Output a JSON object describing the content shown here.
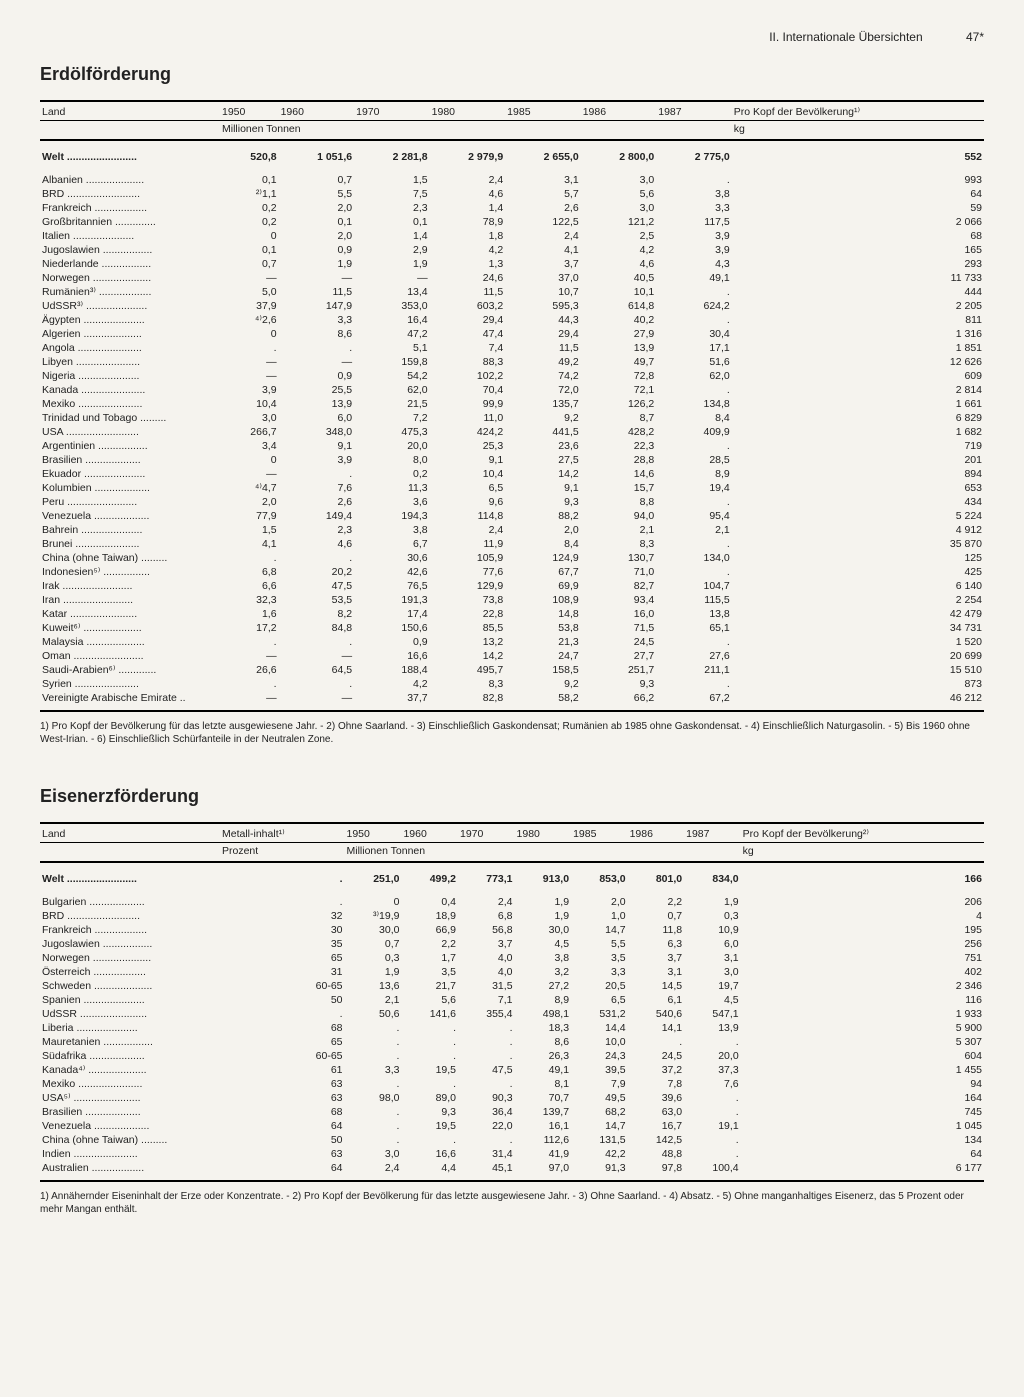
{
  "header": {
    "section": "II. Internationale Übersichten",
    "page": "47*"
  },
  "table1": {
    "title": "Erdölförderung",
    "columns": [
      "Land",
      "1950",
      "1960",
      "1970",
      "1980",
      "1985",
      "1986",
      "1987",
      "Pro Kopf der Bevölkerung¹⁾"
    ],
    "unit_left": "Millionen Tonnen",
    "unit_right": "kg",
    "world_label": "Welt",
    "world": [
      "520,8",
      "1 051,6",
      "2 281,8",
      "2 979,9",
      "2 655,0",
      "2 800,0",
      "2 775,0",
      "552"
    ],
    "rows": [
      [
        "Albanien",
        "0,1",
        "0,7",
        "1,5",
        "2,4",
        "3,1",
        "3,0",
        ".",
        "993"
      ],
      [
        "BRD",
        "²⁾1,1",
        "5,5",
        "7,5",
        "4,6",
        "5,7",
        "5,6",
        "3,8",
        "64"
      ],
      [
        "Frankreich",
        "0,2",
        "2,0",
        "2,3",
        "1,4",
        "2,6",
        "3,0",
        "3,3",
        "59"
      ],
      [
        "Großbritannien",
        "0,2",
        "0,1",
        "0,1",
        "78,9",
        "122,5",
        "121,2",
        "117,5",
        "2 066"
      ],
      [
        "Italien",
        "0",
        "2,0",
        "1,4",
        "1,8",
        "2,4",
        "2,5",
        "3,9",
        "68"
      ],
      [
        "Jugoslawien",
        "0,1",
        "0,9",
        "2,9",
        "4,2",
        "4,1",
        "4,2",
        "3,9",
        "165"
      ],
      [
        "Niederlande",
        "0,7",
        "1,9",
        "1,9",
        "1,3",
        "3,7",
        "4,6",
        "4,3",
        "293"
      ],
      [
        "Norwegen",
        "—",
        "—",
        "—",
        "24,6",
        "37,0",
        "40,5",
        "49,1",
        "11 733"
      ],
      [
        "Rumänien³⁾",
        "5,0",
        "11,5",
        "13,4",
        "11,5",
        "10,7",
        "10,1",
        ".",
        "444"
      ],
      [
        "UdSSR³⁾",
        "37,9",
        "147,9",
        "353,0",
        "603,2",
        "595,3",
        "614,8",
        "624,2",
        "2 205"
      ],
      [
        "Ägypten",
        "⁴⁾2,6",
        "3,3",
        "16,4",
        "29,4",
        "44,3",
        "40,2",
        ".",
        "811"
      ],
      [
        "Algerien",
        "0",
        "8,6",
        "47,2",
        "47,4",
        "29,4",
        "27,9",
        "30,4",
        "1 316"
      ],
      [
        "Angola",
        ".",
        ".",
        "5,1",
        "7,4",
        "11,5",
        "13,9",
        "17,1",
        "1 851"
      ],
      [
        "Libyen",
        "—",
        "—",
        "159,8",
        "88,3",
        "49,2",
        "49,7",
        "51,6",
        "12 626"
      ],
      [
        "Nigeria",
        "—",
        "0,9",
        "54,2",
        "102,2",
        "74,2",
        "72,8",
        "62,0",
        "609"
      ],
      [
        "Kanada",
        "3,9",
        "25,5",
        "62,0",
        "70,4",
        "72,0",
        "72,1",
        ".",
        "2 814"
      ],
      [
        "Mexiko",
        "10,4",
        "13,9",
        "21,5",
        "99,9",
        "135,7",
        "126,2",
        "134,8",
        "1 661"
      ],
      [
        "Trinidad und Tobago",
        "3,0",
        "6,0",
        "7,2",
        "11,0",
        "9,2",
        "8,7",
        "8,4",
        "6 829"
      ],
      [
        "USA",
        "266,7",
        "348,0",
        "475,3",
        "424,2",
        "441,5",
        "428,2",
        "409,9",
        "1 682"
      ],
      [
        "Argentinien",
        "3,4",
        "9,1",
        "20,0",
        "25,3",
        "23,6",
        "22,3",
        ".",
        "719"
      ],
      [
        "Brasilien",
        "0",
        "3,9",
        "8,0",
        "9,1",
        "27,5",
        "28,8",
        "28,5",
        "201"
      ],
      [
        "Ekuador",
        "—",
        ".",
        "0,2",
        "10,4",
        "14,2",
        "14,6",
        "8,9",
        "894"
      ],
      [
        "Kolumbien",
        "⁴⁾4,7",
        "7,6",
        "11,3",
        "6,5",
        "9,1",
        "15,7",
        "19,4",
        "653"
      ],
      [
        "Peru",
        "2,0",
        "2,6",
        "3,6",
        "9,6",
        "9,3",
        "8,8",
        ".",
        "434"
      ],
      [
        "Venezuela",
        "77,9",
        "149,4",
        "194,3",
        "114,8",
        "88,2",
        "94,0",
        "95,4",
        "5 224"
      ],
      [
        "Bahrein",
        "1,5",
        "2,3",
        "3,8",
        "2,4",
        "2,0",
        "2,1",
        "2,1",
        "4 912"
      ],
      [
        "Brunei",
        "4,1",
        "4,6",
        "6,7",
        "11,9",
        "8,4",
        "8,3",
        ".",
        "35 870"
      ],
      [
        "China (ohne Taiwan)",
        ".",
        ".",
        "30,6",
        "105,9",
        "124,9",
        "130,7",
        "134,0",
        "125"
      ],
      [
        "Indonesien⁵⁾",
        "6,8",
        "20,2",
        "42,6",
        "77,6",
        "67,7",
        "71,0",
        ".",
        "425"
      ],
      [
        "Irak",
        "6,6",
        "47,5",
        "76,5",
        "129,9",
        "69,9",
        "82,7",
        "104,7",
        "6 140"
      ],
      [
        "Iran",
        "32,3",
        "53,5",
        "191,3",
        "73,8",
        "108,9",
        "93,4",
        "115,5",
        "2 254"
      ],
      [
        "Katar",
        "1,6",
        "8,2",
        "17,4",
        "22,8",
        "14,8",
        "16,0",
        "13,8",
        "42 479"
      ],
      [
        "Kuweit⁶⁾",
        "17,2",
        "84,8",
        "150,6",
        "85,5",
        "53,8",
        "71,5",
        "65,1",
        "34 731"
      ],
      [
        "Malaysia",
        ".",
        ".",
        "0,9",
        "13,2",
        "21,3",
        "24,5",
        ".",
        "1 520"
      ],
      [
        "Oman",
        "—",
        "—",
        "16,6",
        "14,2",
        "24,7",
        "27,7",
        "27,6",
        "20 699"
      ],
      [
        "Saudi-Arabien⁶⁾",
        "26,6",
        "64,5",
        "188,4",
        "495,7",
        "158,5",
        "251,7",
        "211,1",
        "15 510"
      ],
      [
        "Syrien",
        ".",
        ".",
        "4,2",
        "8,3",
        "9,2",
        "9,3",
        ".",
        "873"
      ],
      [
        "Vereinigte Arabische Emirate",
        "—",
        "—",
        "37,7",
        "82,8",
        "58,2",
        "66,2",
        "67,2",
        "46 212"
      ]
    ],
    "footnotes": "1) Pro Kopf der Bevölkerung für das letzte ausgewiesene Jahr. - 2) Ohne Saarland. - 3) Einschließlich Gaskondensat; Rumänien ab 1985 ohne Gaskondensat. - 4) Einschließlich Naturgasolin. - 5) Bis 1960 ohne West-Irian. - 6) Einschließlich Schürfanteile in der Neutralen Zone."
  },
  "table2": {
    "title": "Eisenerzförderung",
    "columns": [
      "Land",
      "Metall-inhalt¹⁾",
      "1950",
      "1960",
      "1970",
      "1980",
      "1985",
      "1986",
      "1987",
      "Pro Kopf der Bevölkerung²⁾"
    ],
    "unit_left1": "Prozent",
    "unit_left2": "Millionen Tonnen",
    "unit_right": "kg",
    "world_label": "Welt",
    "world": [
      ".",
      "251,0",
      "499,2",
      "773,1",
      "913,0",
      "853,0",
      "801,0",
      "834,0",
      "166"
    ],
    "rows": [
      [
        "Bulgarien",
        ".",
        "0",
        "0,4",
        "2,4",
        "1,9",
        "2,0",
        "2,2",
        "1,9",
        "206"
      ],
      [
        "BRD",
        "32",
        "³⁾19,9",
        "18,9",
        "6,8",
        "1,9",
        "1,0",
        "0,7",
        "0,3",
        "4"
      ],
      [
        "Frankreich",
        "30",
        "30,0",
        "66,9",
        "56,8",
        "30,0",
        "14,7",
        "11,8",
        "10,9",
        "195"
      ],
      [
        "Jugoslawien",
        "35",
        "0,7",
        "2,2",
        "3,7",
        "4,5",
        "5,5",
        "6,3",
        "6,0",
        "256"
      ],
      [
        "Norwegen",
        "65",
        "0,3",
        "1,7",
        "4,0",
        "3,8",
        "3,5",
        "3,7",
        "3,1",
        "751"
      ],
      [
        "Österreich",
        "31",
        "1,9",
        "3,5",
        "4,0",
        "3,2",
        "3,3",
        "3,1",
        "3,0",
        "402"
      ],
      [
        "Schweden",
        "60-65",
        "13,6",
        "21,7",
        "31,5",
        "27,2",
        "20,5",
        "14,5",
        "19,7",
        "2 346"
      ],
      [
        "Spanien",
        "50",
        "2,1",
        "5,6",
        "7,1",
        "8,9",
        "6,5",
        "6,1",
        "4,5",
        "116"
      ],
      [
        "UdSSR",
        ".",
        "50,6",
        "141,6",
        "355,4",
        "498,1",
        "531,2",
        "540,6",
        "547,1",
        "1 933"
      ],
      [
        "Liberia",
        "68",
        ".",
        ".",
        ".",
        "18,3",
        "14,4",
        "14,1",
        "13,9",
        "5 900"
      ],
      [
        "Mauretanien",
        "65",
        ".",
        ".",
        ".",
        "8,6",
        "10,0",
        ".",
        ".",
        "5 307"
      ],
      [
        "Südafrika",
        "60-65",
        ".",
        ".",
        ".",
        "26,3",
        "24,3",
        "24,5",
        "20,0",
        "604"
      ],
      [
        "Kanada⁴⁾",
        "61",
        "3,3",
        "19,5",
        "47,5",
        "49,1",
        "39,5",
        "37,2",
        "37,3",
        "1 455"
      ],
      [
        "Mexiko",
        "63",
        ".",
        ".",
        ".",
        "8,1",
        "7,9",
        "7,8",
        "7,6",
        "94"
      ],
      [
        "USA⁵⁾",
        "63",
        "98,0",
        "89,0",
        "90,3",
        "70,7",
        "49,5",
        "39,6",
        ".",
        "164"
      ],
      [
        "Brasilien",
        "68",
        ".",
        "9,3",
        "36,4",
        "139,7",
        "68,2",
        "63,0",
        ".",
        "745"
      ],
      [
        "Venezuela",
        "64",
        ".",
        "19,5",
        "22,0",
        "16,1",
        "14,7",
        "16,7",
        "19,1",
        "1 045"
      ],
      [
        "China (ohne Taiwan)",
        "50",
        ".",
        ".",
        ".",
        "112,6",
        "131,5",
        "142,5",
        ".",
        "134"
      ],
      [
        "Indien",
        "63",
        "3,0",
        "16,6",
        "31,4",
        "41,9",
        "42,2",
        "48,8",
        ".",
        "64"
      ],
      [
        "Australien",
        "64",
        "2,4",
        "4,4",
        "45,1",
        "97,0",
        "91,3",
        "97,8",
        "100,4",
        "6 177"
      ]
    ],
    "footnotes": "1) Annähernder Eiseninhalt der Erze oder Konzentrate. - 2) Pro Kopf der Bevölkerung für das letzte ausgewiesene Jahr. - 3) Ohne Saarland. - 4) Absatz. - 5) Ohne manganhaltiges Eisenerz, das 5 Prozent oder mehr Mangan enthält."
  }
}
